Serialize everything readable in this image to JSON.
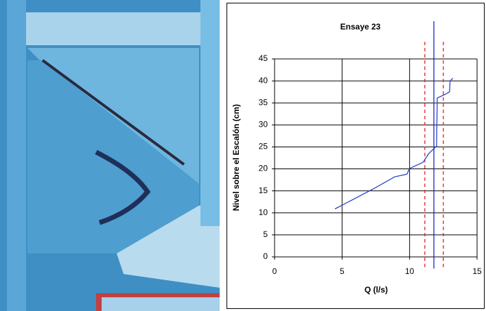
{
  "chart_data": {
    "type": "line",
    "title": "Ensaye 23",
    "x_label": "Q (l/s)",
    "y_label": "Nivel sobre el Escalón (cm)",
    "xlim": [
      0,
      15
    ],
    "xticks": [
      0,
      5,
      10,
      15
    ],
    "ylim": [
      0,
      45
    ],
    "yticks": [
      0,
      5,
      10,
      15,
      20,
      25,
      30,
      35,
      40,
      45
    ],
    "grid": true,
    "series": [
      {
        "color": "#2a44c8",
        "x": [
          4.47,
          7.4,
          8.9,
          9.8,
          10.0,
          11.0,
          11.4,
          12.0,
          12.05,
          12.6,
          12.96,
          13.0,
          13.2
        ],
        "values": [
          10.9,
          15.6,
          18.2,
          18.8,
          20.1,
          21.5,
          23.4,
          25.2,
          36.1,
          36.9,
          37.5,
          40.0,
          40.6
        ]
      }
    ],
    "vlines": [
      {
        "x": 11.8,
        "color": "#1a22c0",
        "style": "solid"
      },
      {
        "x": 11.13,
        "color": "#e02020",
        "style": "dashed"
      },
      {
        "x": 12.5,
        "color": "#e02020",
        "style": "dashed"
      }
    ]
  }
}
